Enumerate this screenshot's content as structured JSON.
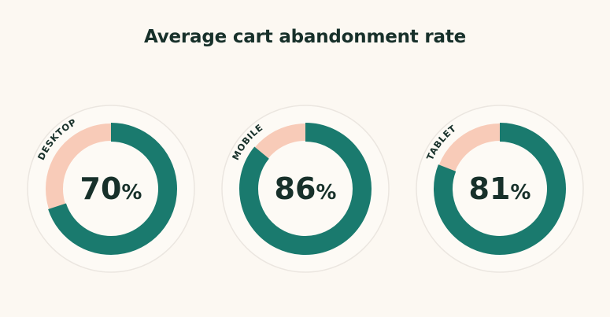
{
  "title": "Average cart abandonment rate",
  "colors": {
    "background": "#fcf8f2",
    "plate": "#fdfaf5",
    "plate_border": "#ebe6e0",
    "abandoned": "#1a7a6e",
    "remainder": "#f8cbb8",
    "text": "#17302a"
  },
  "chart_data": {
    "type": "pie",
    "variant": "donut",
    "title": "Average cart abandonment rate",
    "categories": [
      "DESKTOP",
      "MOBILE",
      "TABLET"
    ],
    "values": [
      70,
      86,
      81
    ],
    "value_labels": [
      "70%",
      "86%",
      "81%"
    ],
    "unit": "%",
    "max": 100
  }
}
